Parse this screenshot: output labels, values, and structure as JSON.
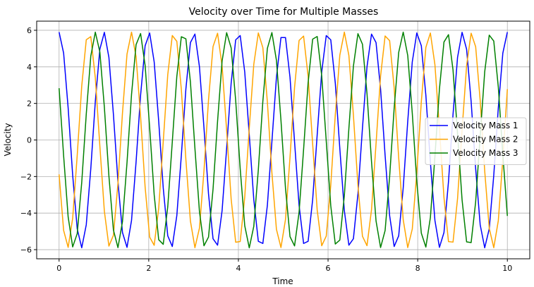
{
  "chart_data": {
    "type": "line",
    "title": "Velocity over Time for Multiple Masses",
    "xlabel": "Time",
    "ylabel": "Velocity",
    "xlim": [
      -0.5,
      10.5
    ],
    "ylim": [
      -6.5,
      6.5
    ],
    "xticks": [
      0,
      2,
      4,
      6,
      8,
      10
    ],
    "yticks": [
      -6,
      -4,
      -2,
      0,
      2,
      4,
      6
    ],
    "grid": true,
    "legend_position": "right",
    "series": [
      {
        "name": "Velocity Mass 1",
        "color": "#0000ff",
        "amplitude": 5.9,
        "period": 1.0,
        "phase": 0.0,
        "x_start": 0,
        "x_end": 10,
        "samples": 100
      },
      {
        "name": "Velocity Mass 2",
        "color": "#ffa500",
        "amplitude": 5.9,
        "period": 0.95,
        "phase": 1.896,
        "x_start": 0,
        "x_end": 10,
        "samples": 100
      },
      {
        "name": "Velocity Mass 3",
        "color": "#008000",
        "amplitude": 5.9,
        "period": 0.98,
        "phase": 1.07,
        "x_start": 0,
        "x_end": 10,
        "samples": 100
      }
    ]
  }
}
